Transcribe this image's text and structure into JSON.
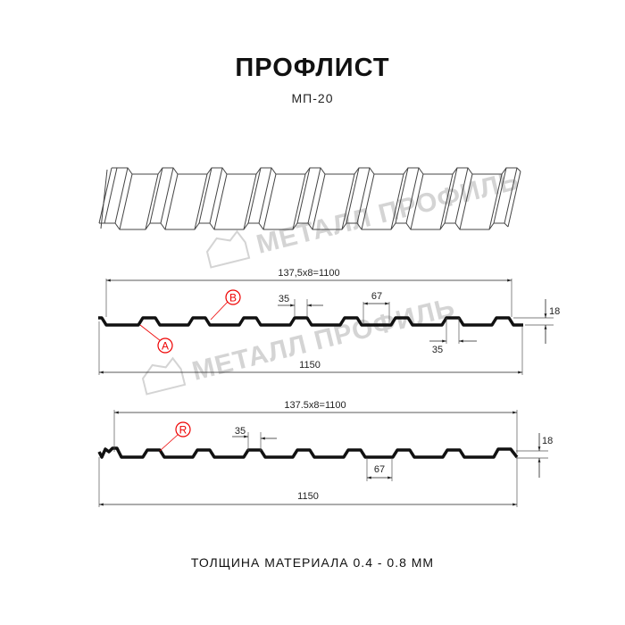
{
  "title": "ПРОФЛИСТ",
  "subtitle": "МП-20",
  "footer": "ТОЛЩИНА МАТЕРИАЛА 0.4 - 0.8 ММ",
  "watermark": "МЕТАЛЛ ПРОФИЛЬ",
  "colors": {
    "profile": "#111111",
    "marker": "#e00000",
    "watermark": "#d4d4d4"
  },
  "profile1": {
    "pitch_label": "137,5x8=1100",
    "width_label": "1150",
    "top_label": "35",
    "bottom_label": "35",
    "rib_label": "67",
    "height_label": "18",
    "markers": [
      "A",
      "B"
    ]
  },
  "profile2": {
    "pitch_label": "137.5x8=1100",
    "width_label": "1150",
    "top_label": "35",
    "rib_label": "67",
    "height_label": "18",
    "markers": [
      "R"
    ]
  }
}
